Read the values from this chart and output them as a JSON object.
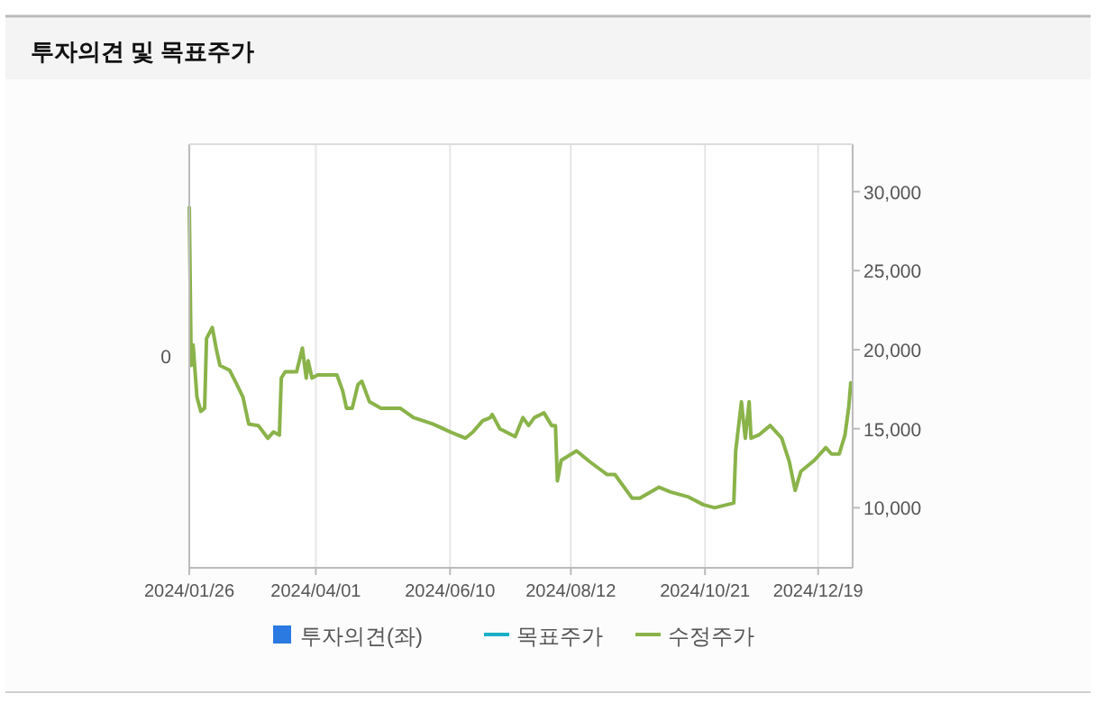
{
  "chart_data": {
    "type": "line",
    "title": "투자의견 및 목표주가",
    "xlim": [
      "2024-01-26",
      "2025-01-06"
    ],
    "xticks": [
      {
        "value": "2024-01-26",
        "label": "2024/01/26"
      },
      {
        "value": "2024-04-01",
        "label": "2024/04/01"
      },
      {
        "value": "2024-06-10",
        "label": "2024/06/10"
      },
      {
        "value": "2024-08-12",
        "label": "2024/08/12"
      },
      {
        "value": "2024-10-21",
        "label": "2024/10/21"
      },
      {
        "value": "2024-12-19",
        "label": "2024/12/19"
      }
    ],
    "ylim": [
      6200,
      33000
    ],
    "yticks": [
      {
        "value": 10000,
        "label": "10,000"
      },
      {
        "value": 15000,
        "label": "15,000"
      },
      {
        "value": 20000,
        "label": "20,000"
      },
      {
        "value": 25000,
        "label": "25,000"
      },
      {
        "value": 30000,
        "label": "30,000"
      }
    ],
    "annotations": [
      "0"
    ],
    "grid": "x",
    "legend": "bottom",
    "marker": "none",
    "series": [
      {
        "name": "투자의견(좌)",
        "type": "bar",
        "color": "#2a7ae2"
      },
      {
        "name": "목표주가",
        "color": "#1ab0c8"
      },
      {
        "name": "수정주가",
        "color": "#8ab34a",
        "x": [
          "2024-01-26",
          "2024-01-27",
          "2024-01-28",
          "2024-01-30",
          "2024-02-01",
          "2024-02-03",
          "2024-02-04",
          "2024-02-07",
          "2024-02-09",
          "2024-02-11",
          "2024-02-16",
          "2024-02-19",
          "2024-02-23",
          "2024-02-26",
          "2024-03-02",
          "2024-03-07",
          "2024-03-10",
          "2024-03-13",
          "2024-03-14",
          "2024-03-16",
          "2024-03-22",
          "2024-03-25",
          "2024-03-27",
          "2024-03-28",
          "2024-03-30",
          "2024-04-02",
          "2024-04-12",
          "2024-04-15",
          "2024-04-17",
          "2024-04-20",
          "2024-04-23",
          "2024-04-25",
          "2024-04-29",
          "2024-05-05",
          "2024-05-15",
          "2024-05-22",
          "2024-06-01",
          "2024-06-10",
          "2024-06-18",
          "2024-06-22",
          "2024-06-27",
          "2024-07-01",
          "2024-07-02",
          "2024-07-06",
          "2024-07-14",
          "2024-07-18",
          "2024-07-21",
          "2024-07-24",
          "2024-07-29",
          "2024-08-02",
          "2024-08-04",
          "2024-08-05",
          "2024-08-07",
          "2024-08-15",
          "2024-08-22",
          "2024-08-31",
          "2024-09-04",
          "2024-09-13",
          "2024-09-17",
          "2024-09-27",
          "2024-10-03",
          "2024-10-12",
          "2024-10-20",
          "2024-10-26",
          "2024-11-05",
          "2024-11-06",
          "2024-11-09",
          "2024-11-11",
          "2024-11-13",
          "2024-11-14",
          "2024-11-18",
          "2024-11-24",
          "2024-11-30",
          "2024-12-04",
          "2024-12-07",
          "2024-12-10",
          "2024-12-17",
          "2024-12-23",
          "2024-12-26",
          "2024-12-30",
          "2025-01-02",
          "2025-01-04",
          "2025-01-05"
        ],
        "values": [
          29000,
          19000,
          20300,
          17000,
          16100,
          16300,
          20700,
          21400,
          20100,
          19000,
          18700,
          18000,
          17000,
          15300,
          15200,
          14400,
          14800,
          14600,
          18200,
          18600,
          18600,
          20100,
          18200,
          19300,
          18200,
          18400,
          18400,
          17400,
          16300,
          16300,
          17800,
          18000,
          16700,
          16300,
          16300,
          15700,
          15300,
          14800,
          14400,
          14800,
          15500,
          15700,
          15900,
          15000,
          14500,
          15700,
          15200,
          15700,
          16000,
          15200,
          15200,
          11700,
          13000,
          13600,
          12900,
          12100,
          12100,
          10600,
          10600,
          11300,
          11000,
          10700,
          10200,
          10000,
          10300,
          13600,
          16700,
          14400,
          16700,
          14400,
          14600,
          15200,
          14400,
          12900,
          11100,
          12300,
          13000,
          13800,
          13400,
          13400,
          14600,
          16400,
          17900
        ]
      }
    ]
  }
}
